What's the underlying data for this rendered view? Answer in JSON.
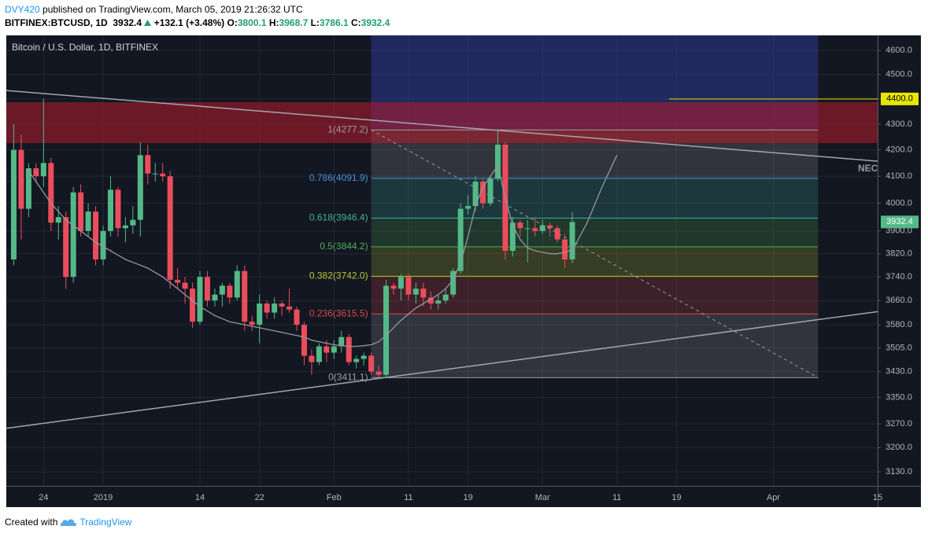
{
  "header": {
    "author": "DVY420",
    "published": " published on TradingView.com, March 05, 2019 21:26:32 UTC",
    "symbol": "BITFINEX:BTCUSD, 1D",
    "change": "+132.1 (+3.48%)",
    "ohlc_labels": [
      "O:",
      "H:",
      "L:",
      "C:"
    ]
  },
  "footer": {
    "created": "Created with",
    "brand": "TradingView"
  },
  "chart_data": {
    "type": "candlestick",
    "title": "Bitcoin / U.S. Dollar, 1D, BITFINEX",
    "log_scale": true,
    "grid": true,
    "up_color": "#53b987",
    "down_color": "#eb4d5c",
    "xlim": [
      "2018-12-19",
      "2019-04-15"
    ],
    "xticks": [
      {
        "value": "2018-12-24",
        "label": "24"
      },
      {
        "value": "2019-01-01",
        "label": "2019"
      },
      {
        "value": "2019-01-14",
        "label": "14"
      },
      {
        "value": "2019-01-22",
        "label": "22"
      },
      {
        "value": "2019-02-01",
        "label": "Feb"
      },
      {
        "value": "2019-02-11",
        "label": "11"
      },
      {
        "value": "2019-02-19",
        "label": "19"
      },
      {
        "value": "2019-03-01",
        "label": "Mar"
      },
      {
        "value": "2019-03-11",
        "label": "11"
      },
      {
        "value": "2019-03-19",
        "label": "19"
      },
      {
        "value": "2019-04-01",
        "label": "Apr"
      },
      {
        "value": "2019-04-15",
        "label": "15"
      }
    ],
    "ylim": [
      3090,
      4663
    ],
    "yticks": [
      {
        "value": 3130,
        "label": "3130.0"
      },
      {
        "value": 3200,
        "label": "3200.0"
      },
      {
        "value": 3270,
        "label": "3270.0"
      },
      {
        "value": 3350,
        "label": "3350.0"
      },
      {
        "value": 3430,
        "label": "3430.0"
      },
      {
        "value": 3505,
        "label": "3505.0"
      },
      {
        "value": 3580,
        "label": "3580.0"
      },
      {
        "value": 3660,
        "label": "3660.0"
      },
      {
        "value": 3740,
        "label": "3740.0"
      },
      {
        "value": 3820,
        "label": "3820.0"
      },
      {
        "value": 3900,
        "label": "3900.0"
      },
      {
        "value": 4000,
        "label": "4000.0"
      },
      {
        "value": 4100,
        "label": "4100.0"
      },
      {
        "value": 4200,
        "label": "4200.0"
      },
      {
        "value": 4300,
        "label": "4300.0"
      },
      {
        "value": 4400,
        "label": "4400.0"
      },
      {
        "value": 4500,
        "label": "4500.0"
      },
      {
        "value": 4600,
        "label": "4600.0"
      }
    ],
    "x": [
      "2018-12-20",
      "2018-12-21",
      "2018-12-22",
      "2018-12-23",
      "2018-12-24",
      "2018-12-25",
      "2018-12-26",
      "2018-12-27",
      "2018-12-28",
      "2018-12-29",
      "2018-12-30",
      "2018-12-31",
      "2019-01-01",
      "2019-01-02",
      "2019-01-03",
      "2019-01-04",
      "2019-01-05",
      "2019-01-06",
      "2019-01-07",
      "2019-01-08",
      "2019-01-09",
      "2019-01-10",
      "2019-01-11",
      "2019-01-12",
      "2019-01-13",
      "2019-01-14",
      "2019-01-15",
      "2019-01-16",
      "2019-01-17",
      "2019-01-18",
      "2019-01-19",
      "2019-01-20",
      "2019-01-21",
      "2019-01-22",
      "2019-01-23",
      "2019-01-24",
      "2019-01-25",
      "2019-01-26",
      "2019-01-27",
      "2019-01-28",
      "2019-01-29",
      "2019-01-30",
      "2019-01-31",
      "2019-02-01",
      "2019-02-02",
      "2019-02-03",
      "2019-02-04",
      "2019-02-05",
      "2019-02-06",
      "2019-02-07",
      "2019-02-08",
      "2019-02-09",
      "2019-02-10",
      "2019-02-11",
      "2019-02-12",
      "2019-02-13",
      "2019-02-14",
      "2019-02-15",
      "2019-02-16",
      "2019-02-17",
      "2019-02-18",
      "2019-02-19",
      "2019-02-20",
      "2019-02-21",
      "2019-02-22",
      "2019-02-23",
      "2019-02-24",
      "2019-02-25",
      "2019-02-26",
      "2019-02-27",
      "2019-02-28",
      "2019-03-01",
      "2019-03-02",
      "2019-03-03",
      "2019-03-04",
      "2019-03-05"
    ],
    "open": [
      3800,
      4200,
      3980,
      4130,
      4100,
      4150,
      3930,
      3950,
      3740,
      4040,
      3900,
      3970,
      3800,
      3900,
      4050,
      3910,
      3920,
      3940,
      4180,
      4110,
      4110,
      4100,
      3730,
      3720,
      3700,
      3590,
      3740,
      3660,
      3680,
      3710,
      3670,
      3760,
      3590,
      3580,
      3650,
      3620,
      3650,
      3640,
      3630,
      3580,
      3480,
      3460,
      3510,
      3490,
      3510,
      3540,
      3460,
      3470,
      3480,
      3430,
      3420,
      3710,
      3700,
      3740,
      3680,
      3700,
      3670,
      3650,
      3660,
      3680,
      3760,
      3980,
      3990,
      4080,
      4000,
      4090,
      4220,
      3830,
      3930,
      3910,
      3910,
      3900,
      3920,
      3910,
      3870,
      3800.1
    ],
    "high": [
      4300,
      4260,
      4150,
      4150,
      4400,
      4170,
      3990,
      3970,
      4060,
      4070,
      4000,
      3990,
      3920,
      4100,
      4060,
      3950,
      3990,
      4230,
      4220,
      4150,
      4150,
      4120,
      3770,
      3740,
      3720,
      3760,
      3760,
      3700,
      3720,
      3720,
      3780,
      3780,
      3610,
      3680,
      3660,
      3670,
      3660,
      3700,
      3640,
      3590,
      3500,
      3520,
      3530,
      3530,
      3560,
      3550,
      3480,
      3490,
      3490,
      3450,
      3730,
      3720,
      3750,
      3750,
      3720,
      3720,
      3690,
      3680,
      3700,
      3770,
      4000,
      4030,
      4100,
      4090,
      4100,
      4280,
      4230,
      3950,
      3940,
      3940,
      3950,
      3940,
      3930,
      3920,
      3890,
      3968.7
    ],
    "low": [
      3780,
      3870,
      3950,
      4080,
      4060,
      3900,
      3870,
      3700,
      3720,
      3880,
      3880,
      3780,
      3780,
      3880,
      3880,
      3860,
      3890,
      3880,
      4070,
      4080,
      4080,
      3700,
      3700,
      3650,
      3570,
      3580,
      3640,
      3640,
      3640,
      3650,
      3660,
      3560,
      3560,
      3520,
      3600,
      3600,
      3610,
      3620,
      3560,
      3450,
      3420,
      3450,
      3460,
      3470,
      3490,
      3450,
      3440,
      3450,
      3420,
      3410,
      3410,
      3680,
      3660,
      3660,
      3650,
      3640,
      3630,
      3630,
      3650,
      3670,
      3750,
      3960,
      3970,
      3980,
      3990,
      4080,
      3800,
      3810,
      3880,
      3790,
      3880,
      3890,
      3880,
      3860,
      3770,
      3786.1
    ],
    "close": [
      4200,
      3980,
      4130,
      4100,
      4150,
      3930,
      3950,
      3740,
      4040,
      3900,
      3970,
      3800,
      3900,
      4050,
      3910,
      3920,
      3940,
      4180,
      4110,
      4110,
      4100,
      3730,
      3720,
      3700,
      3590,
      3740,
      3660,
      3680,
      3710,
      3670,
      3760,
      3590,
      3580,
      3650,
      3620,
      3650,
      3640,
      3630,
      3580,
      3480,
      3460,
      3510,
      3490,
      3510,
      3540,
      3460,
      3470,
      3480,
      3430,
      3420,
      3710,
      3700,
      3740,
      3680,
      3700,
      3670,
      3650,
      3660,
      3680,
      3760,
      3980,
      3990,
      4080,
      4000,
      4090,
      4220,
      3830,
      3930,
      3910,
      3910,
      3900,
      3920,
      3910,
      3870,
      3800,
      3932.4
    ],
    "ma": {
      "color": "#9598a1",
      "values": [
        null,
        null,
        4120,
        4080,
        4040,
        4000,
        3970,
        3940,
        3920,
        3900,
        3880,
        3860,
        3845,
        3830,
        3815,
        3800,
        3790,
        3780,
        3770,
        3755,
        3740,
        3720,
        3700,
        3680,
        3660,
        3640,
        3625,
        3610,
        3600,
        3590,
        3585,
        3580,
        3575,
        3570,
        3565,
        3560,
        3555,
        3550,
        3545,
        3540,
        3530,
        3525,
        3520,
        3515,
        3512,
        3510,
        3510,
        3512,
        3515,
        3525,
        3545,
        3570,
        3595,
        3615,
        3635,
        3650,
        3665,
        3680,
        3700,
        3730,
        3790,
        3880,
        3990,
        4060,
        4100,
        4140,
        4020,
        3920,
        3870,
        3840,
        3830,
        3825,
        3820,
        3820,
        3825,
        3835
      ]
    },
    "projection": {
      "color": "#9598a1",
      "x": [
        "2019-03-05",
        "2019-03-07",
        "2019-03-09",
        "2019-03-11"
      ],
      "values": [
        3830,
        3930,
        4060,
        4180
      ]
    },
    "resistance_zone": {
      "color": "#b71c2c",
      "values": [
        4226,
        4387
      ]
    },
    "trend_lines": [
      {
        "color": "#a3a6af",
        "x": [
          "2018-12-19",
          "2019-04-15"
        ],
        "values": [
          4434,
          4157
        ],
        "label": "NECK"
      },
      {
        "color": "#a3a6af",
        "x": [
          "2018-12-19",
          "2019-04-15"
        ],
        "values": [
          3257,
          3623
        ]
      }
    ],
    "fib": {
      "x": [
        "2019-02-06",
        "2019-04-07"
      ],
      "extension_color": "#3040a8",
      "levels": [
        {
          "label": "1(4277.2)",
          "price": 4277.2,
          "color": "#9e9e9e"
        },
        {
          "label": "0.786(4091.9)",
          "price": 4091.9,
          "color": "#4a90d9"
        },
        {
          "label": "0.618(3946.4)",
          "price": 3946.4,
          "color": "#3fb39a"
        },
        {
          "label": "0.5(3844.2)",
          "price": 3844.2,
          "color": "#4caf50"
        },
        {
          "label": "0.382(3742.0)",
          "price": 3742.0,
          "color": "#b5c72e"
        },
        {
          "label": "0.236(3615.5)",
          "price": 3615.5,
          "color": "#d84a4a"
        },
        {
          "label": "0(3411.1)",
          "price": 3411.1,
          "color": "#9e9e9e"
        }
      ]
    },
    "target_line": {
      "x": "2019-03-18",
      "value": 4400,
      "label": "4400.0",
      "color": "#e6e600"
    }
  }
}
